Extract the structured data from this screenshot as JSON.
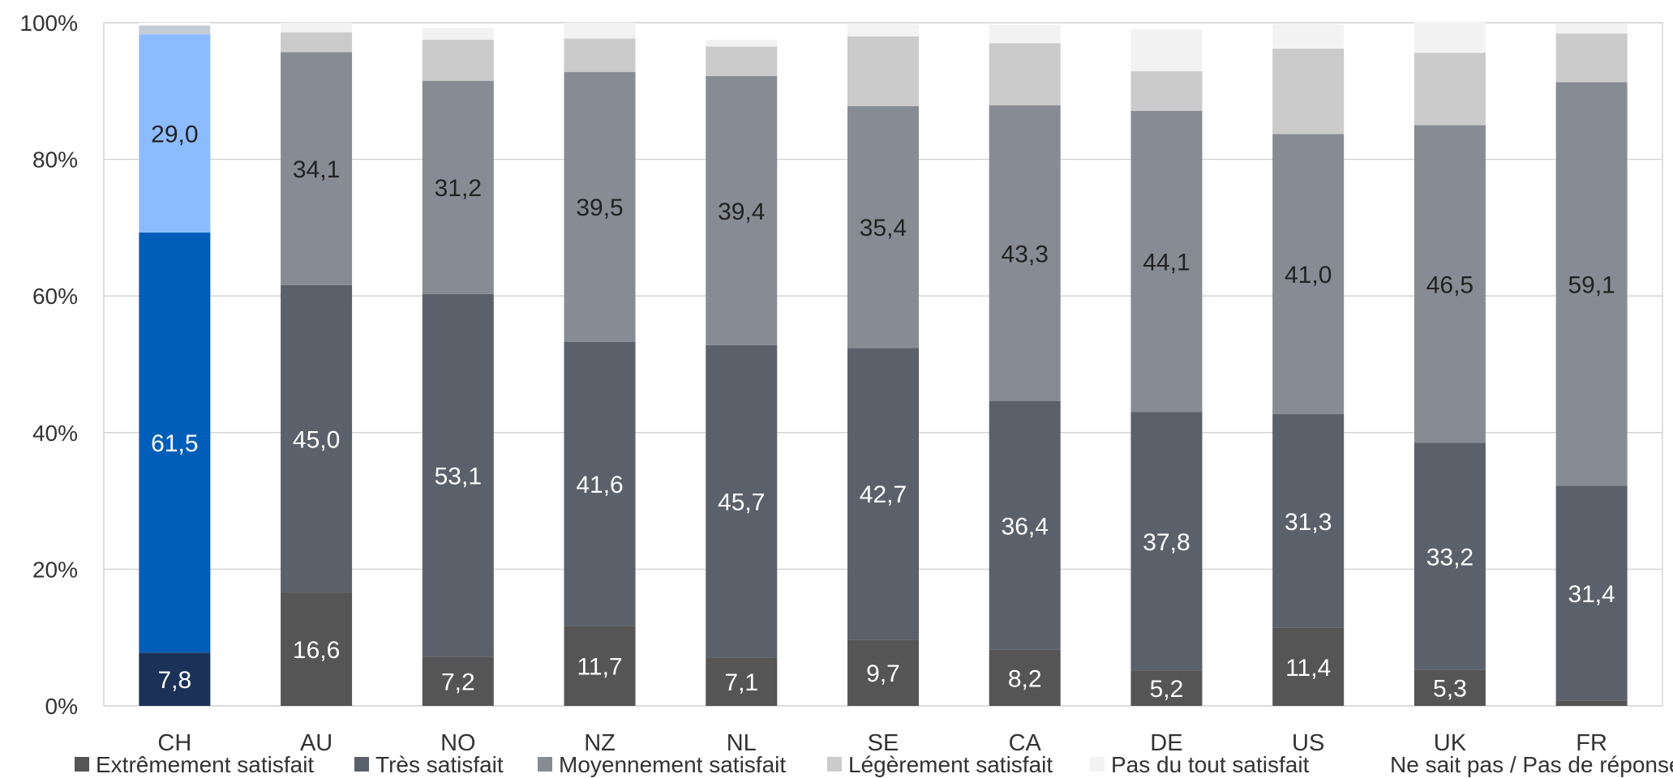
{
  "chart_data": {
    "type": "bar",
    "stacked": true,
    "title": "",
    "xlabel": "",
    "ylabel": "",
    "ylim": [
      0,
      100
    ],
    "y_ticks": [
      "0%",
      "20%",
      "40%",
      "60%",
      "80%",
      "100%"
    ],
    "grid": true,
    "legend_position": "bottom",
    "categories": [
      "CH",
      "AU",
      "NO",
      "NZ",
      "NL",
      "SE",
      "CA",
      "DE",
      "US",
      "UK",
      "FR"
    ],
    "series": [
      {
        "name": "Extrêmement satisfait",
        "color": "#555555",
        "highlight_color": "#1b3157",
        "values": [
          7.8,
          16.6,
          7.2,
          11.7,
          7.1,
          9.7,
          8.2,
          5.2,
          11.4,
          5.3,
          0.8
        ],
        "labels": [
          "7,8",
          "16,6",
          "7,2",
          "11,7",
          "7,1",
          "9,7",
          "8,2",
          "5,2",
          "11,4",
          "5,3",
          ""
        ],
        "label_color": "#ffffff"
      },
      {
        "name": "Très satisfait",
        "color": "#5a616b",
        "highlight_color": "#005eb8",
        "values": [
          61.5,
          45.0,
          53.1,
          41.6,
          45.7,
          42.7,
          36.4,
          37.8,
          31.3,
          33.2,
          31.4
        ],
        "labels": [
          "61,5",
          "45,0",
          "53,1",
          "41,6",
          "45,7",
          "42,7",
          "36,4",
          "37,8",
          "31,3",
          "33,2",
          "31,4"
        ],
        "label_color": "#ffffff"
      },
      {
        "name": "Moyennement satisfait",
        "color": "#878c94",
        "highlight_color": "#8cbcff",
        "values": [
          29.0,
          34.1,
          31.2,
          39.5,
          39.4,
          35.4,
          43.3,
          44.1,
          41.0,
          46.5,
          59.1
        ],
        "labels": [
          "29,0",
          "34,1",
          "31,2",
          "39,5",
          "39,4",
          "35,4",
          "43,3",
          "44,1",
          "41,0",
          "46,5",
          "59,1"
        ],
        "label_color": "#222222"
      },
      {
        "name": "Légèrement satisfait",
        "color": "#cbcbcb",
        "highlight_color": "#cbcbcb",
        "values": [
          0.0,
          2.9,
          6.0,
          4.9,
          4.3,
          10.2,
          9.1,
          5.8,
          12.5,
          10.6,
          7.1
        ],
        "labels": [
          "",
          "",
          "",
          "",
          "",
          "",
          "",
          "",
          "",
          "",
          ""
        ],
        "label_color": "#222222"
      },
      {
        "name": "Pas du tout satisfait",
        "color": "#f2f2f2",
        "highlight_color": "#c4cbd6",
        "values": [
          1.3,
          1.4,
          1.7,
          2.3,
          1.0,
          1.8,
          2.7,
          6.1,
          3.6,
          4.5,
          1.5
        ],
        "labels": [
          "",
          "",
          "",
          "",
          "",
          "",
          "",
          "",
          "",
          "",
          ""
        ],
        "label_color": "#222222"
      },
      {
        "name": "Ne sait pas / Pas de réponse",
        "color": "#ffffff",
        "highlight_color": "#ffffff",
        "values": [
          0.4,
          0.0,
          0.0,
          0.0,
          0.0,
          0.0,
          0.0,
          0.0,
          0.0,
          0.0,
          0.0
        ],
        "labels": [
          "",
          "",
          "",
          "",
          "",
          "",
          "",
          "",
          "",
          "",
          ""
        ],
        "label_color": "#222222"
      }
    ],
    "highlight_category": "CH"
  }
}
